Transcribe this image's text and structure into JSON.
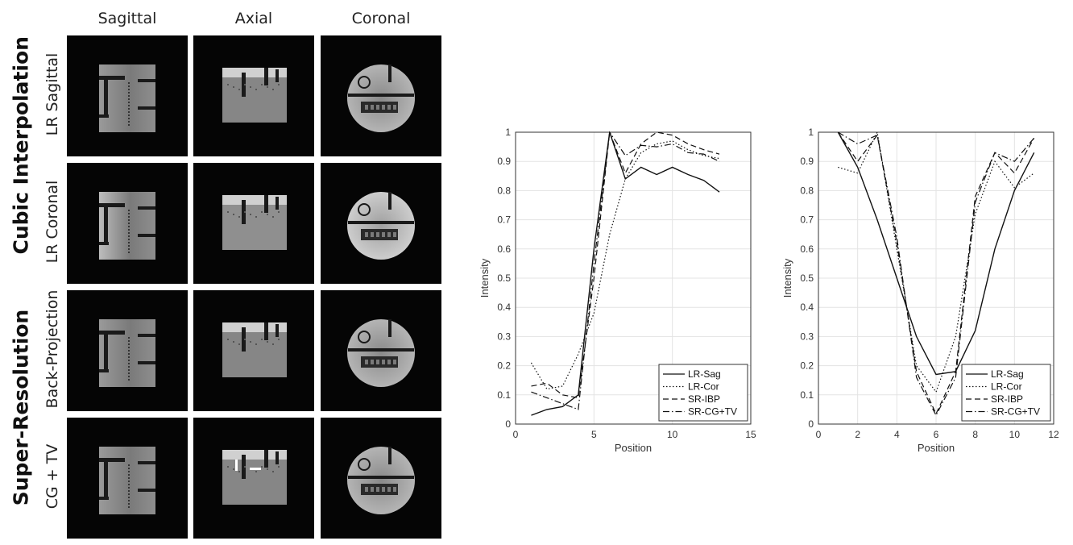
{
  "columns": [
    "Sagittal",
    "Axial",
    "Coronal"
  ],
  "groups": [
    "Cubic Interpolation",
    "Super-Resolution"
  ],
  "rows": [
    "LR Sagittal",
    "LR Coronal",
    "Back-Projection",
    "CG + TV"
  ],
  "chart_data": [
    {
      "type": "line",
      "title": "",
      "xlabel": "Position",
      "ylabel": "Intensity",
      "xlim": [
        0,
        15
      ],
      "ylim": [
        0,
        1
      ],
      "xticks": [
        0,
        5,
        10,
        15
      ],
      "yticks": [
        0,
        0.1,
        0.2,
        0.3,
        0.4,
        0.5,
        0.6,
        0.7,
        0.8,
        0.9,
        1
      ],
      "grid": true,
      "legend_position": "bottom-right",
      "x": [
        1,
        2,
        3,
        4,
        5,
        6,
        7,
        8,
        9,
        10,
        11,
        12,
        13
      ],
      "series": [
        {
          "name": "LR-Sag",
          "style": "solid",
          "values": [
            0.03,
            0.05,
            0.06,
            0.1,
            0.6,
            1.0,
            0.84,
            0.88,
            0.855,
            0.88,
            0.855,
            0.835,
            0.795
          ]
        },
        {
          "name": "LR-Cor",
          "style": "dotted",
          "values": [
            0.21,
            0.12,
            0.13,
            0.24,
            0.38,
            0.65,
            0.84,
            0.93,
            0.96,
            0.97,
            0.94,
            0.92,
            0.91
          ]
        },
        {
          "name": "SR-IBP",
          "style": "dashed",
          "values": [
            0.13,
            0.14,
            0.1,
            0.09,
            0.5,
            1.0,
            0.86,
            0.96,
            1.0,
            0.99,
            0.96,
            0.94,
            0.925
          ]
        },
        {
          "name": "SR-CG+TV",
          "style": "dashdot",
          "values": [
            0.11,
            0.09,
            0.07,
            0.05,
            0.55,
            1.0,
            0.92,
            0.955,
            0.95,
            0.96,
            0.93,
            0.925,
            0.9
          ]
        }
      ]
    },
    {
      "type": "line",
      "title": "",
      "xlabel": "Position",
      "ylabel": "Intensity",
      "xlim": [
        0,
        12
      ],
      "ylim": [
        0,
        1
      ],
      "xticks": [
        0,
        2,
        4,
        6,
        8,
        10,
        12
      ],
      "yticks": [
        0,
        0.1,
        0.2,
        0.3,
        0.4,
        0.5,
        0.6,
        0.7,
        0.8,
        0.9,
        1
      ],
      "grid": true,
      "legend_position": "bottom-right",
      "x": [
        1,
        2,
        3,
        4,
        5,
        6,
        7,
        8,
        9,
        10,
        11
      ],
      "series": [
        {
          "name": "LR-Sag",
          "style": "solid",
          "values": [
            1.0,
            0.88,
            0.7,
            0.5,
            0.3,
            0.17,
            0.18,
            0.32,
            0.6,
            0.8,
            0.93
          ]
        },
        {
          "name": "LR-Cor",
          "style": "dotted",
          "values": [
            0.88,
            0.86,
            1.0,
            0.6,
            0.2,
            0.11,
            0.3,
            0.72,
            0.9,
            0.81,
            0.86
          ]
        },
        {
          "name": "SR-IBP",
          "style": "dashed",
          "values": [
            1.0,
            0.9,
            0.99,
            0.62,
            0.18,
            0.035,
            0.18,
            0.78,
            0.93,
            0.86,
            0.98
          ]
        },
        {
          "name": "SR-CG+TV",
          "style": "dashdot",
          "values": [
            1.0,
            0.96,
            0.99,
            0.64,
            0.16,
            0.03,
            0.16,
            0.76,
            0.93,
            0.9,
            0.98
          ]
        }
      ]
    }
  ]
}
